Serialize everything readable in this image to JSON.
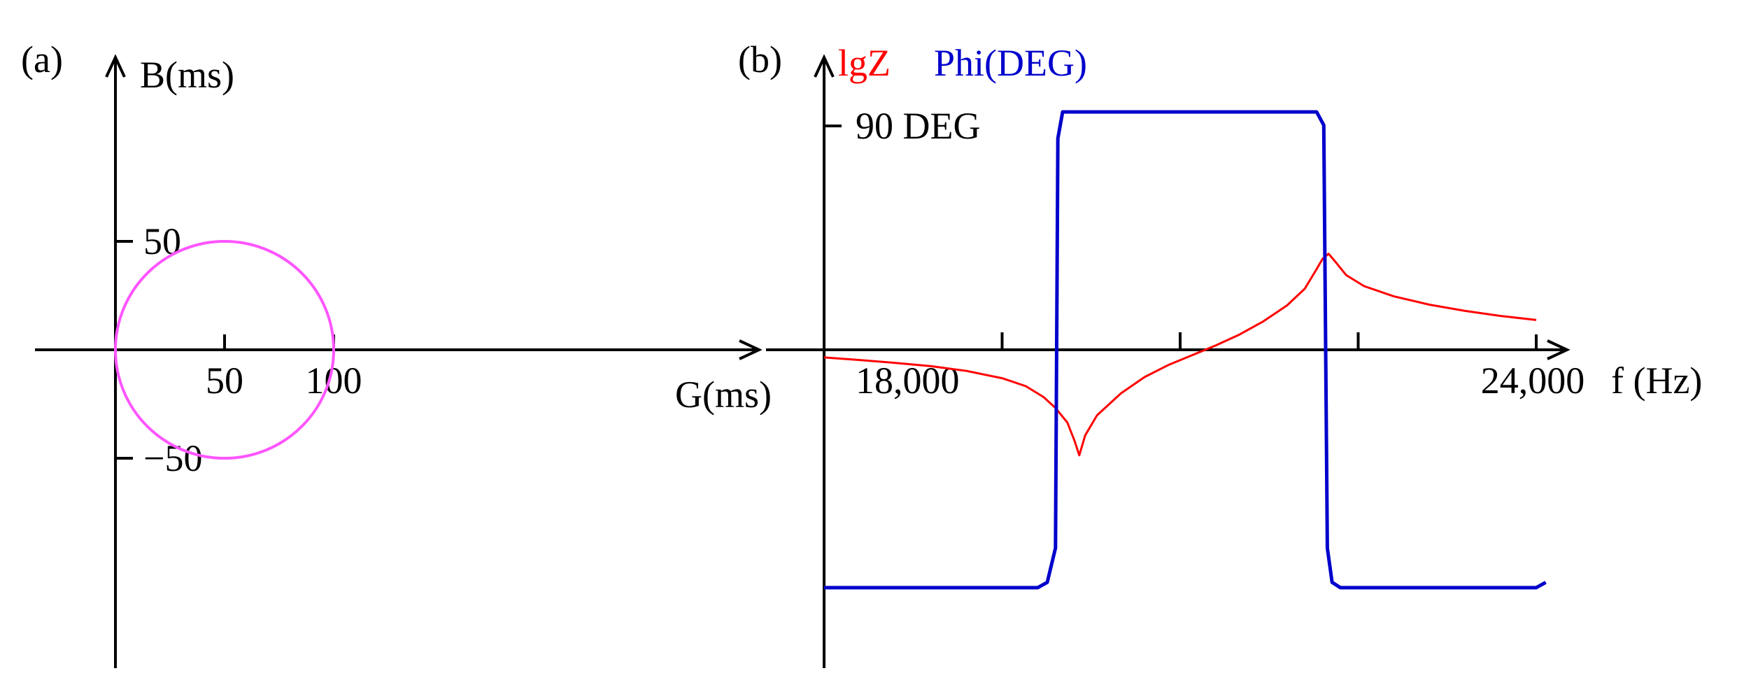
{
  "chart_data": [
    {
      "panel_label": "(a)",
      "type": "line",
      "xlabel": "G(ms)",
      "ylabel": "B(ms)",
      "x_ticks": [
        {
          "value": 50,
          "label": "50"
        },
        {
          "value": 100,
          "label": "100"
        }
      ],
      "y_ticks": [
        {
          "value": 50,
          "label": "50"
        },
        {
          "value": -50,
          "label": "−50"
        }
      ],
      "xlim": [
        -20,
        135
      ],
      "ylim": [
        -75,
        70
      ],
      "series": [
        {
          "color": "#ff55ff",
          "shape": "circle",
          "center": [
            50,
            0
          ],
          "radius": 50
        }
      ]
    },
    {
      "panel_label": "(b)",
      "type": "line",
      "xlabel": "f (Hz)",
      "ylabel_parts": [
        {
          "text": "lgZ",
          "color": "#ff0000"
        },
        {
          "text": "Phi(DEG)",
          "color": "#0000cc"
        }
      ],
      "x_tick_labels": [
        {
          "value": 18000,
          "label": "18,000"
        },
        {
          "value": 24000,
          "label": "24,000"
        }
      ],
      "x_minor_ticks": [
        19500,
        21000,
        22500
      ],
      "y_ticks": [
        {
          "value": 90,
          "label": "90 DEG"
        }
      ],
      "xlim": [
        18000,
        24250
      ],
      "series": [
        {
          "name": "lgZ",
          "color": "#ff0000",
          "x": [
            18000,
            18300,
            18600,
            18900,
            19200,
            19500,
            19700,
            19850,
            19950,
            20050,
            20110,
            20150,
            20200,
            20300,
            20500,
            20700,
            20900,
            21100,
            21300,
            21500,
            21700,
            21900,
            22050,
            22150,
            22200,
            22250,
            22300,
            22400,
            22550,
            22800,
            23100,
            23400,
            23700,
            24000
          ],
          "y": [
            -0.21,
            -0.28,
            -0.36,
            -0.45,
            -0.58,
            -0.78,
            -1.0,
            -1.3,
            -1.6,
            -2.0,
            -2.5,
            -2.9,
            -2.35,
            -1.8,
            -1.2,
            -0.75,
            -0.42,
            -0.15,
            0.12,
            0.42,
            0.78,
            1.22,
            1.68,
            2.22,
            2.5,
            2.64,
            2.45,
            2.05,
            1.75,
            1.47,
            1.24,
            1.07,
            0.93,
            0.82
          ]
        },
        {
          "name": "Phi(DEG)",
          "color": "#0000cc",
          "x": [
            18000,
            19800,
            19880,
            19950,
            19970,
            20010,
            22150,
            22210,
            22240,
            22280,
            22350,
            24000,
            24080
          ],
          "y": [
            -90,
            -90,
            -88,
            -75,
            80,
            90,
            90,
            85,
            -75,
            -88,
            -90,
            -90,
            -88
          ]
        }
      ]
    }
  ]
}
